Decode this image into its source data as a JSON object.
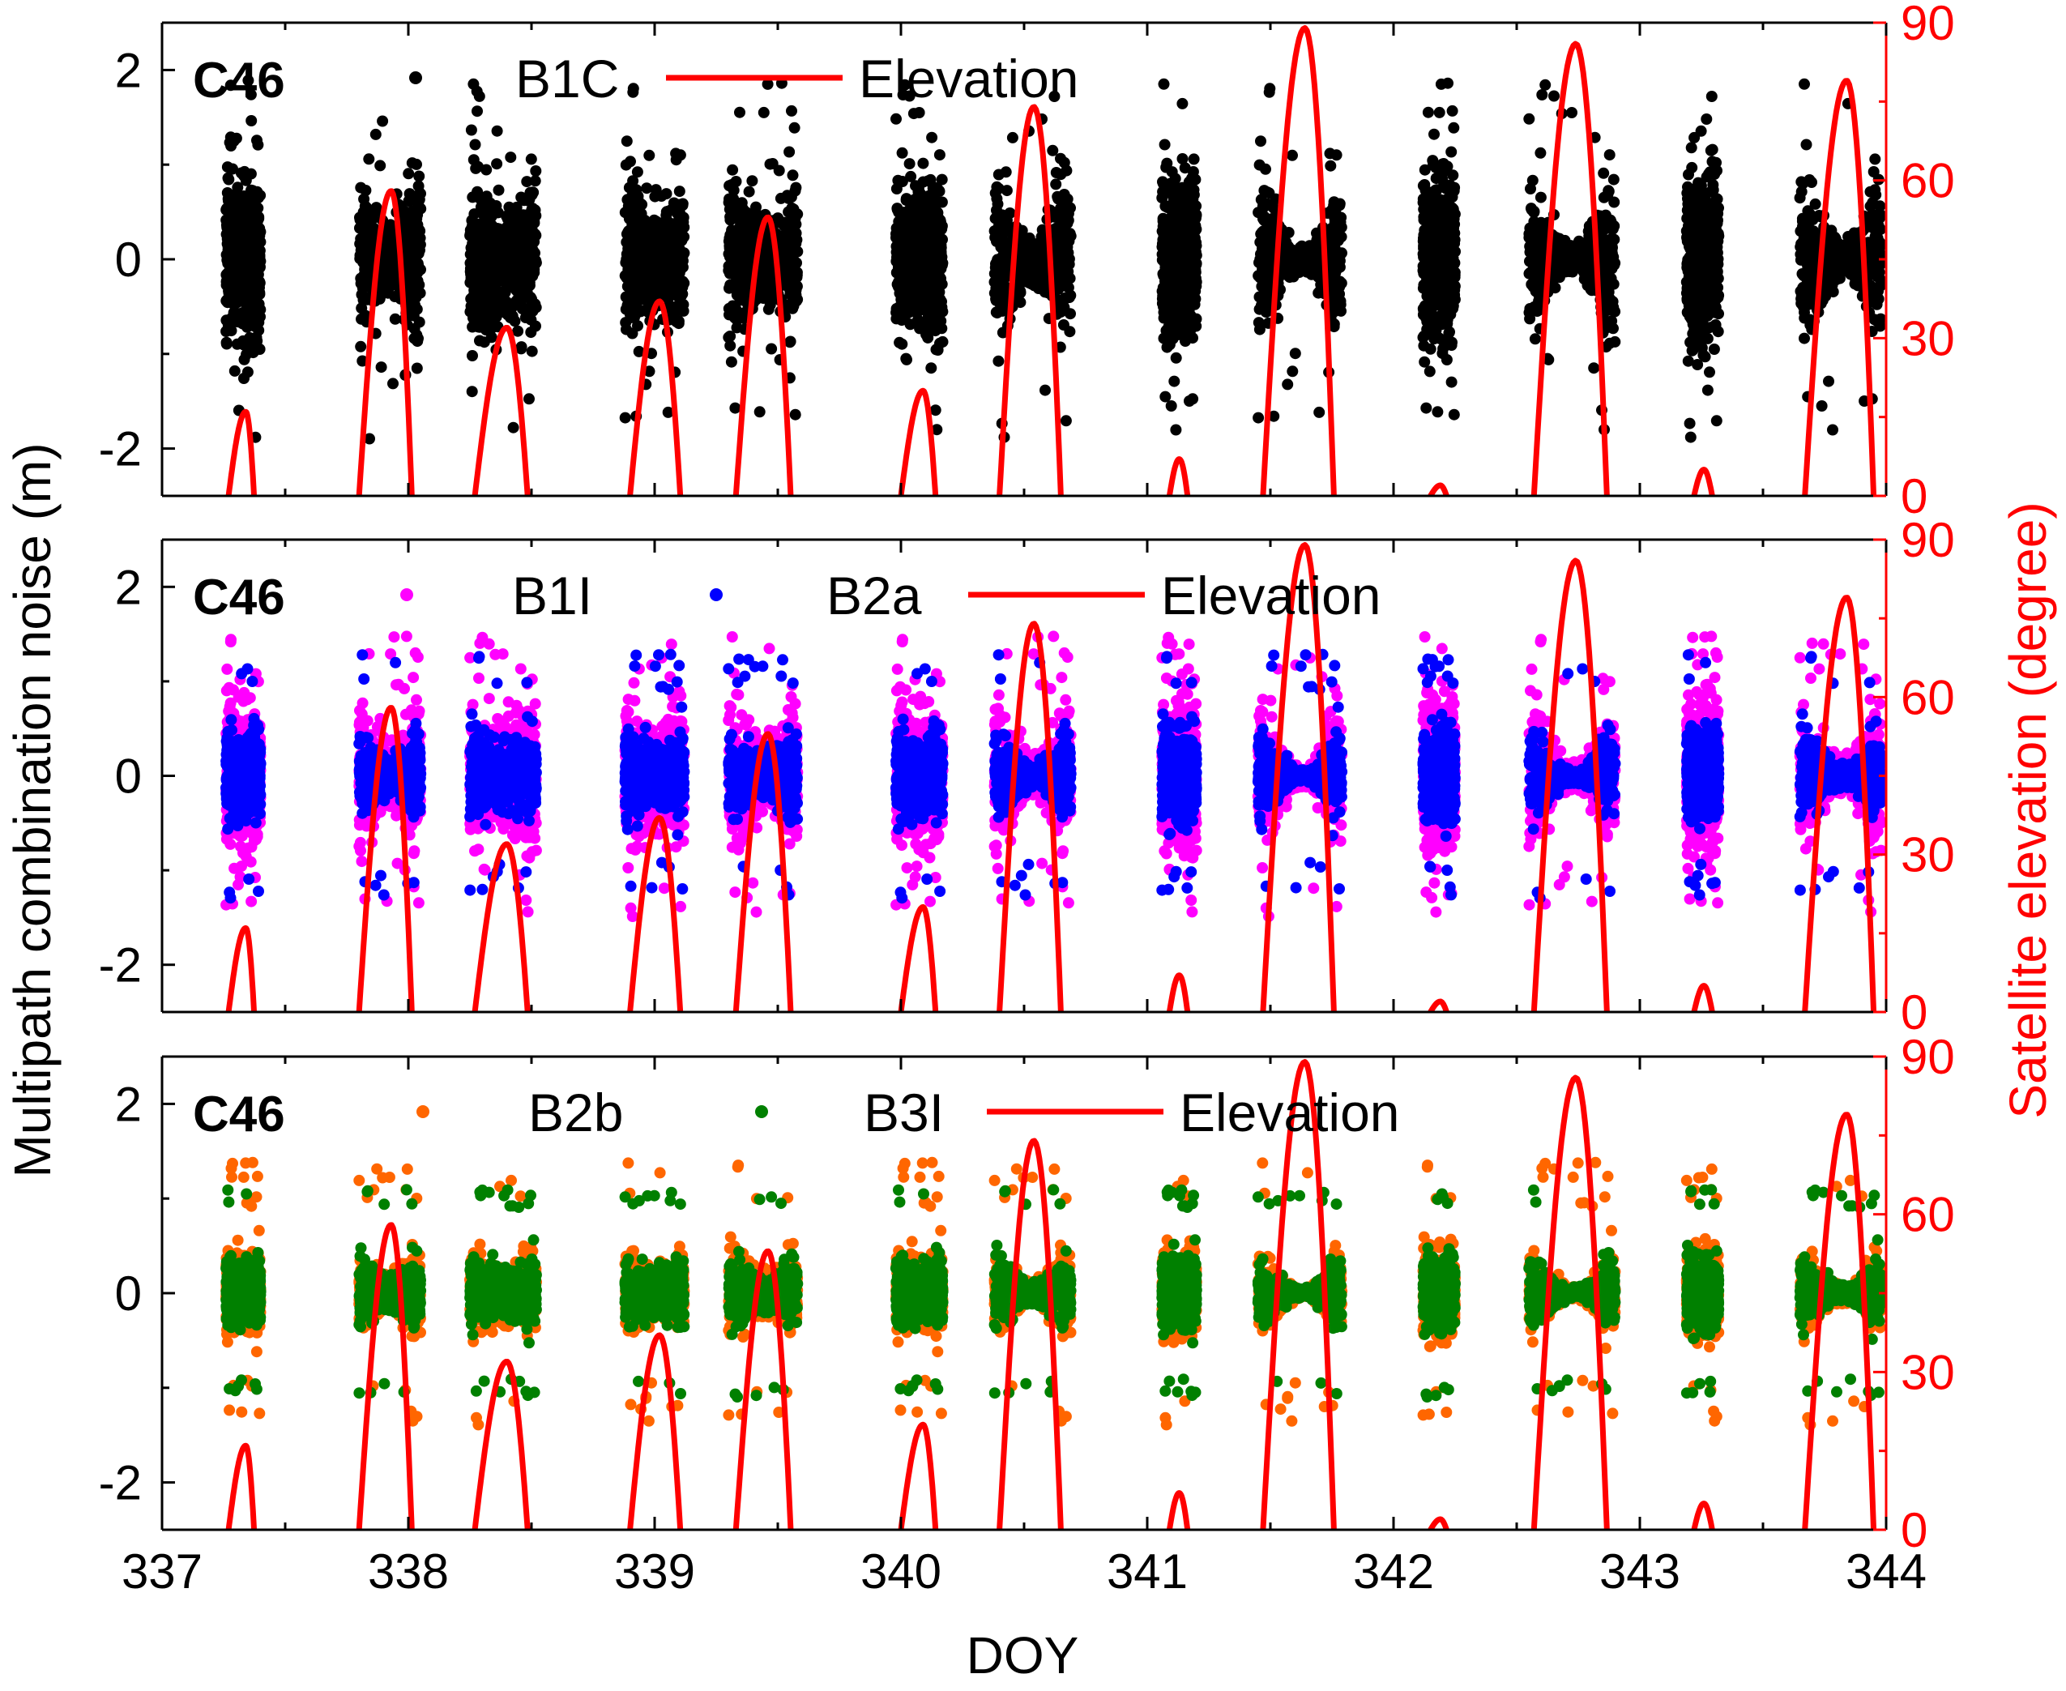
{
  "chart_data": {
    "type": "scatter",
    "xlabel": "DOY",
    "ylabel": "Multipath combination noise (m)",
    "y2label": "Satellite elevation (degree)",
    "xlim": [
      337,
      344
    ],
    "ylim": [
      -2.5,
      2.5
    ],
    "y2lim": [
      0,
      90
    ],
    "x_ticks": [
      "337",
      "338",
      "339",
      "340",
      "341",
      "342",
      "343",
      "344"
    ],
    "y_ticks": [
      "-2",
      "0",
      "2"
    ],
    "y2_ticks": [
      "0",
      "30",
      "60",
      "90"
    ],
    "elevation_color": "#ff0000",
    "elevation_arcs": [
      {
        "start": 337.27,
        "peak": 337.34,
        "end": 337.38,
        "max": 16
      },
      {
        "start": 337.8,
        "peak": 337.93,
        "end": 338.03,
        "max": 58
      },
      {
        "start": 338.27,
        "peak": 338.4,
        "end": 338.5,
        "max": 32
      },
      {
        "start": 338.9,
        "peak": 339.02,
        "end": 339.12,
        "max": 37
      },
      {
        "start": 339.33,
        "peak": 339.46,
        "end": 339.57,
        "max": 53
      },
      {
        "start": 340.0,
        "peak": 340.09,
        "end": 340.15,
        "max": 20
      },
      {
        "start": 340.4,
        "peak": 340.54,
        "end": 340.67,
        "max": 74
      },
      {
        "start": 341.09,
        "peak": 341.13,
        "end": 341.17,
        "max": 7
      },
      {
        "start": 341.47,
        "peak": 341.64,
        "end": 341.78,
        "max": 89
      },
      {
        "start": 342.15,
        "peak": 342.19,
        "end": 342.22,
        "max": 2
      },
      {
        "start": 342.57,
        "peak": 342.74,
        "end": 342.89,
        "max": 86
      },
      {
        "start": 343.22,
        "peak": 343.26,
        "end": 343.3,
        "max": 5
      },
      {
        "start": 343.67,
        "peak": 343.84,
        "end": 343.97,
        "max": 79
      }
    ],
    "visibility_passes": [
      {
        "start": 337.26,
        "end": 337.4
      },
      {
        "start": 337.8,
        "end": 338.05
      },
      {
        "start": 338.25,
        "end": 338.52
      },
      {
        "start": 338.88,
        "end": 339.12
      },
      {
        "start": 339.3,
        "end": 339.58
      },
      {
        "start": 339.98,
        "end": 340.17
      },
      {
        "start": 340.38,
        "end": 340.69
      },
      {
        "start": 341.06,
        "end": 341.2
      },
      {
        "start": 341.45,
        "end": 341.79
      },
      {
        "start": 342.12,
        "end": 342.25
      },
      {
        "start": 342.55,
        "end": 342.9
      },
      {
        "start": 343.19,
        "end": 343.32
      },
      {
        "start": 343.65,
        "end": 343.98
      }
    ],
    "panels": [
      {
        "satellite": "C46",
        "series": [
          {
            "name": "B1C",
            "color": "#000000",
            "noise_std": 0.42,
            "outlier_max": 1.9
          }
        ],
        "legend": [
          {
            "label": "B1C",
            "kind": "marker",
            "color": "#000000"
          },
          {
            "label": "Elevation",
            "kind": "line",
            "color": "#ff0000"
          }
        ]
      },
      {
        "satellite": "C46",
        "series": [
          {
            "name": "B1I",
            "color": "#ff00ff",
            "noise_std": 0.38,
            "outlier_max": 1.5
          },
          {
            "name": "B2a",
            "color": "#0000ff",
            "noise_std": 0.22,
            "outlier_max": 1.3
          }
        ],
        "legend": [
          {
            "label": "B1I",
            "kind": "marker",
            "color": "#ff00ff"
          },
          {
            "label": "B2a",
            "kind": "marker",
            "color": "#0000ff"
          },
          {
            "label": "Elevation",
            "kind": "line",
            "color": "#ff0000"
          }
        ]
      },
      {
        "satellite": "C46",
        "series": [
          {
            "name": "B2b",
            "color": "#ff6600",
            "noise_std": 0.2,
            "outlier_max": 1.4
          },
          {
            "name": "B3I",
            "color": "#008000",
            "noise_std": 0.17,
            "outlier_max": 1.1
          }
        ],
        "legend": [
          {
            "label": "B2b",
            "kind": "marker",
            "color": "#ff6600"
          },
          {
            "label": "B3I",
            "kind": "marker",
            "color": "#008000"
          },
          {
            "label": "Elevation",
            "kind": "line",
            "color": "#ff0000"
          }
        ]
      }
    ]
  }
}
